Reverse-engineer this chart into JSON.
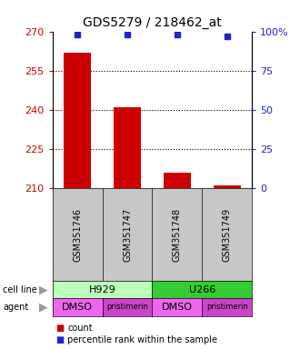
{
  "title": "GDS5279 / 218462_at",
  "samples": [
    "GSM351746",
    "GSM351747",
    "GSM351748",
    "GSM351749"
  ],
  "count_values": [
    262,
    241,
    216,
    211
  ],
  "percentile_values": [
    98,
    98,
    98,
    97
  ],
  "ylim_left": [
    210,
    270
  ],
  "yticks_left": [
    210,
    225,
    240,
    255,
    270
  ],
  "ylim_right": [
    0,
    100
  ],
  "yticks_right": [
    0,
    25,
    50,
    75,
    100
  ],
  "ytick_labels_right": [
    "0",
    "25",
    "50",
    "75",
    "100%"
  ],
  "bar_color": "#cc0000",
  "dot_color": "#2222cc",
  "cell_line_groups": [
    {
      "label": "H929",
      "color": "#bbffbb",
      "span": 2
    },
    {
      "label": "U266",
      "color": "#33cc33",
      "span": 2
    }
  ],
  "agents": [
    "DMSO",
    "pristimerin",
    "DMSO",
    "pristimerin"
  ],
  "agent_color_dmso": "#ee66ee",
  "agent_color_pristimerin": "#cc44cc",
  "left_axis_color": "#cc0000",
  "right_axis_color": "#2222cc",
  "background_color": "#ffffff",
  "legend_count_color": "#cc0000",
  "legend_pct_color": "#2222cc",
  "sample_box_color": "#c8c8c8",
  "grid_yticks": [
    225,
    240,
    255
  ]
}
